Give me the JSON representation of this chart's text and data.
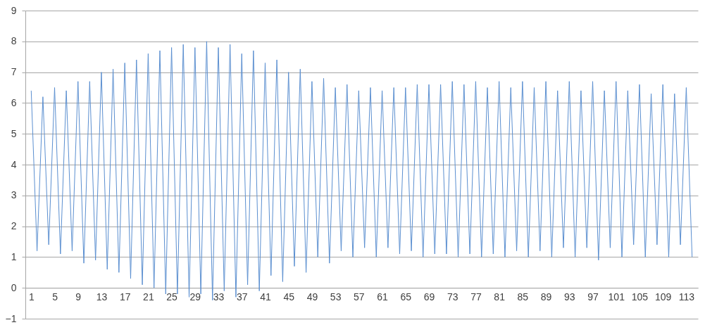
{
  "chart_data": {
    "type": "line",
    "categories": [
      "1",
      null,
      null,
      null,
      "5",
      null,
      null,
      null,
      "9",
      null,
      null,
      null,
      "13",
      null,
      null,
      null,
      "17",
      null,
      null,
      null,
      "21",
      null,
      null,
      null,
      "25",
      null,
      null,
      null,
      "29",
      null,
      null,
      null,
      "33",
      null,
      null,
      null,
      "37",
      null,
      null,
      null,
      "41",
      null,
      null,
      null,
      "45",
      null,
      null,
      null,
      "49",
      null,
      null,
      null,
      "53",
      null,
      null,
      null,
      "57",
      null,
      null,
      null,
      "61",
      null,
      null,
      null,
      "65",
      null,
      null,
      null,
      "69",
      null,
      null,
      null,
      "73",
      null,
      null,
      null,
      "77",
      null,
      null,
      null,
      "81",
      null,
      null,
      null,
      "85",
      null,
      null,
      null,
      "89",
      null,
      null,
      null,
      "93",
      null,
      null,
      null,
      "97",
      null,
      null,
      null,
      "101",
      null,
      null,
      null,
      "105",
      null,
      null,
      null,
      "109",
      null,
      null,
      null,
      "113",
      null
    ],
    "values": [
      6.4,
      1.2,
      6.2,
      1.4,
      6.5,
      1.1,
      6.4,
      1.2,
      6.7,
      0.8,
      6.7,
      0.9,
      7.0,
      0.6,
      7.1,
      0.5,
      7.3,
      0.3,
      7.4,
      0.1,
      7.6,
      0.0,
      7.7,
      -0.2,
      7.8,
      -0.2,
      7.9,
      -0.3,
      7.8,
      -0.2,
      8.0,
      -0.4,
      7.8,
      -0.1,
      7.9,
      -0.3,
      7.6,
      0.1,
      7.7,
      -0.1,
      7.3,
      0.4,
      7.4,
      0.2,
      7.0,
      0.7,
      7.1,
      0.5,
      6.7,
      1.0,
      6.8,
      0.8,
      6.5,
      1.2,
      6.6,
      1.0,
      6.4,
      1.3,
      6.5,
      1.0,
      6.4,
      1.3,
      6.5,
      1.1,
      6.5,
      1.2,
      6.6,
      1.0,
      6.6,
      1.1,
      6.6,
      1.1,
      6.7,
      1.0,
      6.6,
      1.1,
      6.7,
      1.0,
      6.5,
      1.1,
      6.7,
      1.0,
      6.5,
      1.2,
      6.7,
      1.0,
      6.5,
      1.2,
      6.7,
      1.0,
      6.4,
      1.3,
      6.7,
      1.0,
      6.4,
      1.3,
      6.7,
      0.9,
      6.4,
      1.3,
      6.7,
      1.0,
      6.4,
      1.4,
      6.6,
      1.0,
      6.3,
      1.4,
      6.6,
      1.0,
      6.3,
      1.4,
      6.5,
      1.0
    ],
    "color": "#5b8fd0",
    "ylim": [
      -1,
      9
    ],
    "yticks": [
      -1,
      0,
      1,
      2,
      3,
      4,
      5,
      6,
      7,
      8,
      9
    ],
    "grid": true
  }
}
